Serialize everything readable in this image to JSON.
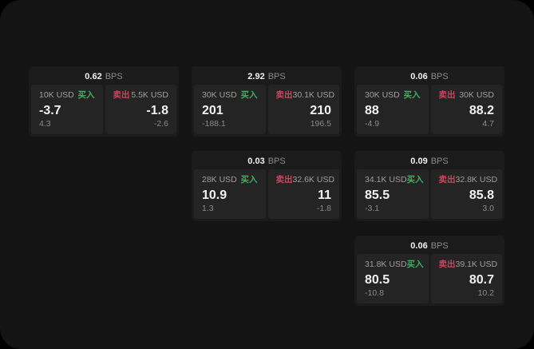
{
  "labels": {
    "bps": "BPS",
    "buy": "买入",
    "sell": "卖出"
  },
  "colors": {
    "page_bg": "#000000",
    "app_bg": "#141414",
    "card_bg": "#1B1B1B",
    "panel_bg": "#242424",
    "text_primary": "#F2F2F2",
    "text_secondary": "#9E9E9E",
    "text_muted": "#8A8A8A",
    "buy_green": "#3FAE5F",
    "sell_red": "#C4495E"
  },
  "cards": [
    {
      "bps": "0.62",
      "buy": {
        "amount": "10K USD",
        "price": "-3.7",
        "delta": "4.3"
      },
      "sell": {
        "amount": "5.5K USD",
        "price": "-1.8",
        "delta": "-2.6"
      }
    },
    {
      "bps": "2.92",
      "buy": {
        "amount": "30K USD",
        "price": "201",
        "delta": "-188.1"
      },
      "sell": {
        "amount": "30.1K USD",
        "price": "210",
        "delta": "196.5"
      }
    },
    {
      "bps": "0.06",
      "buy": {
        "amount": "30K USD",
        "price": "88",
        "delta": "-4.9"
      },
      "sell": {
        "amount": "30K USD",
        "price": "88.2",
        "delta": "4.7"
      }
    },
    {
      "bps": "0.03",
      "buy": {
        "amount": "28K USD",
        "price": "10.9",
        "delta": "1.3"
      },
      "sell": {
        "amount": "32.6K USD",
        "price": "11",
        "delta": "-1.8"
      }
    },
    {
      "bps": "0.09",
      "buy": {
        "amount": "34.1K USD",
        "price": "85.5",
        "delta": "-3.1"
      },
      "sell": {
        "amount": "32.8K USD",
        "price": "85.8",
        "delta": "3.0"
      }
    },
    {
      "bps": "0.06",
      "buy": {
        "amount": "31.8K USD",
        "price": "80.5",
        "delta": "-10.8"
      },
      "sell": {
        "amount": "39.1K USD",
        "price": "80.7",
        "delta": "10.2"
      }
    }
  ]
}
